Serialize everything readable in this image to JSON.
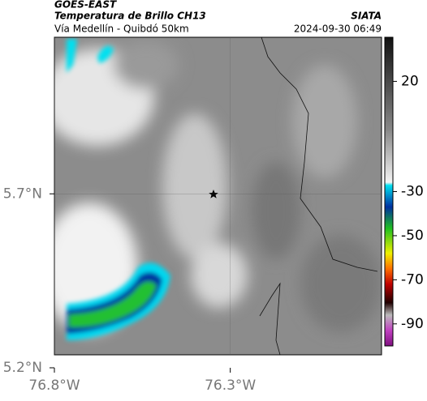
{
  "header": {
    "source": "GOES-EAST",
    "product": "Temperatura de Brillo CH13",
    "org": "SIATA",
    "route": "Vía Medellín - Quibdó 50km",
    "timestamp": "2024-09-30 06:49"
  },
  "map": {
    "xlim": [
      -76.8,
      -75.87
    ],
    "ylim": [
      5.2,
      6.15
    ],
    "xticks": [
      {
        "value": -76.8,
        "label": "76.8°W"
      },
      {
        "value": -76.3,
        "label": "76.3°W"
      }
    ],
    "yticks": [
      {
        "value": 5.2,
        "label": "5.2°N"
      },
      {
        "value": 5.7,
        "label": "5.7°N"
      }
    ]
  },
  "colorbar": {
    "lim": [
      40,
      -100
    ],
    "ticks": [
      20,
      -30,
      -50,
      -70,
      -90
    ]
  }
}
